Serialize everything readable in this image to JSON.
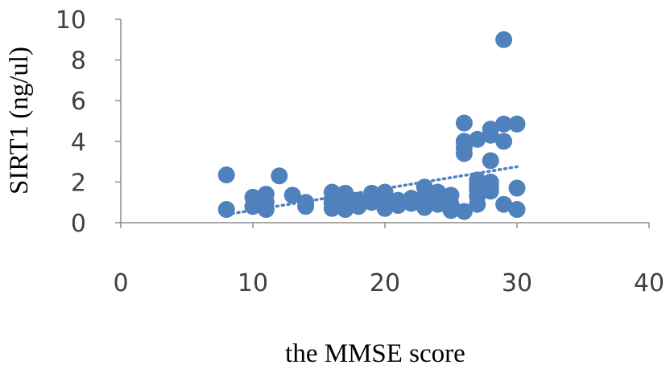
{
  "chart_data": {
    "type": "scatter",
    "xlabel": "the MMSE score",
    "ylabel": "SIRT1 (ng/ul)",
    "xlim": [
      0,
      40
    ],
    "ylim": [
      0,
      10
    ],
    "x_ticks": [
      "0",
      "10",
      "20",
      "30",
      "40"
    ],
    "y_ticks": [
      "0",
      "2",
      "4",
      "6",
      "8",
      "10"
    ],
    "grid": false,
    "legend": "none",
    "marker_color": "#4F81BD",
    "trendline": {
      "style": "dotted",
      "x": [
        8,
        30
      ],
      "y": [
        0.4,
        2.75
      ]
    },
    "points": [
      {
        "x": 8,
        "y": 2.35
      },
      {
        "x": 8,
        "y": 0.65
      },
      {
        "x": 10,
        "y": 1.25
      },
      {
        "x": 10,
        "y": 0.8
      },
      {
        "x": 11,
        "y": 1.4
      },
      {
        "x": 11,
        "y": 1.0
      },
      {
        "x": 11,
        "y": 0.65
      },
      {
        "x": 12,
        "y": 2.3
      },
      {
        "x": 13,
        "y": 1.35
      },
      {
        "x": 14,
        "y": 1.0
      },
      {
        "x": 14,
        "y": 0.8
      },
      {
        "x": 16,
        "y": 1.5
      },
      {
        "x": 16,
        "y": 1.15
      },
      {
        "x": 16,
        "y": 0.95
      },
      {
        "x": 16,
        "y": 0.7
      },
      {
        "x": 17,
        "y": 1.45
      },
      {
        "x": 17,
        "y": 1.2
      },
      {
        "x": 17,
        "y": 0.9
      },
      {
        "x": 17,
        "y": 0.65
      },
      {
        "x": 18,
        "y": 1.1
      },
      {
        "x": 18,
        "y": 0.8
      },
      {
        "x": 19,
        "y": 1.45
      },
      {
        "x": 19,
        "y": 1.0
      },
      {
        "x": 20,
        "y": 1.5
      },
      {
        "x": 20,
        "y": 1.2
      },
      {
        "x": 20,
        "y": 0.95
      },
      {
        "x": 20,
        "y": 0.7
      },
      {
        "x": 21,
        "y": 1.1
      },
      {
        "x": 21,
        "y": 0.85
      },
      {
        "x": 22,
        "y": 1.2
      },
      {
        "x": 22,
        "y": 0.95
      },
      {
        "x": 23,
        "y": 1.75
      },
      {
        "x": 23,
        "y": 1.3
      },
      {
        "x": 23,
        "y": 1.0
      },
      {
        "x": 23,
        "y": 0.75
      },
      {
        "x": 24,
        "y": 1.5
      },
      {
        "x": 24,
        "y": 1.2
      },
      {
        "x": 24,
        "y": 0.9
      },
      {
        "x": 25,
        "y": 1.35
      },
      {
        "x": 25,
        "y": 0.9
      },
      {
        "x": 25,
        "y": 0.6
      },
      {
        "x": 26,
        "y": 4.9
      },
      {
        "x": 26,
        "y": 4.0
      },
      {
        "x": 26,
        "y": 3.7
      },
      {
        "x": 26,
        "y": 3.4
      },
      {
        "x": 26,
        "y": 0.55
      },
      {
        "x": 27,
        "y": 4.1
      },
      {
        "x": 27,
        "y": 2.1
      },
      {
        "x": 27,
        "y": 1.85
      },
      {
        "x": 27,
        "y": 1.6
      },
      {
        "x": 27,
        "y": 1.3
      },
      {
        "x": 27,
        "y": 0.9
      },
      {
        "x": 28,
        "y": 4.6
      },
      {
        "x": 28,
        "y": 4.3
      },
      {
        "x": 28,
        "y": 3.05
      },
      {
        "x": 28,
        "y": 2.0
      },
      {
        "x": 28,
        "y": 1.75
      },
      {
        "x": 28,
        "y": 1.55
      },
      {
        "x": 29,
        "y": 9.0
      },
      {
        "x": 29,
        "y": 4.85
      },
      {
        "x": 29,
        "y": 4.0
      },
      {
        "x": 29,
        "y": 0.9
      },
      {
        "x": 30,
        "y": 4.85
      },
      {
        "x": 30,
        "y": 1.7
      },
      {
        "x": 30,
        "y": 0.65
      }
    ]
  }
}
